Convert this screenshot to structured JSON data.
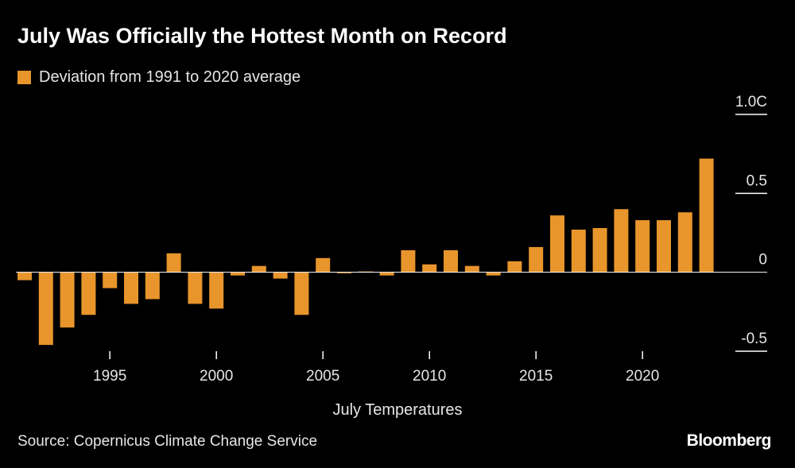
{
  "title": "July Was Officially the Hottest Month on Record",
  "legend_label": "Deviation from 1991 to 2020 average",
  "source": "Source: Copernicus Climate Change Service",
  "brand": "Bloomberg",
  "colors": {
    "background": "#000000",
    "bar": "#e8952c",
    "text": "#e6e6e6",
    "axis": "#ffffff"
  },
  "chart_data": {
    "type": "bar",
    "xlabel": "July Temperatures",
    "ylabel": "",
    "series": [
      {
        "name": "Deviation from 1991 to 2020 average"
      }
    ],
    "categories": [
      1991,
      1992,
      1993,
      1994,
      1995,
      1996,
      1997,
      1998,
      1999,
      2000,
      2001,
      2002,
      2003,
      2004,
      2005,
      2006,
      2007,
      2008,
      2009,
      2010,
      2011,
      2012,
      2013,
      2014,
      2015,
      2016,
      2017,
      2018,
      2019,
      2020,
      2021,
      2022,
      2023
    ],
    "values": [
      -0.05,
      -0.46,
      -0.35,
      -0.27,
      -0.1,
      -0.2,
      -0.17,
      0.12,
      -0.2,
      -0.23,
      -0.02,
      0.04,
      -0.04,
      -0.27,
      0.09,
      -0.005,
      0.005,
      -0.02,
      0.14,
      0.05,
      0.14,
      0.04,
      -0.02,
      0.07,
      0.16,
      0.36,
      0.27,
      0.28,
      0.4,
      0.33,
      0.33,
      0.38,
      0.72
    ],
    "ylim": [
      -0.55,
      1.0
    ],
    "yticks": [
      1.0,
      0.5,
      0,
      -0.5
    ],
    "ytick_labels": [
      "1.0C",
      "0.5",
      "0",
      "-0.5"
    ],
    "xticks": [
      1995,
      2000,
      2005,
      2010,
      2015,
      2020
    ],
    "xtick_labels": [
      "1995",
      "2000",
      "2005",
      "2010",
      "2015",
      "2020"
    ],
    "grid": false,
    "legend_position": "top-left"
  }
}
